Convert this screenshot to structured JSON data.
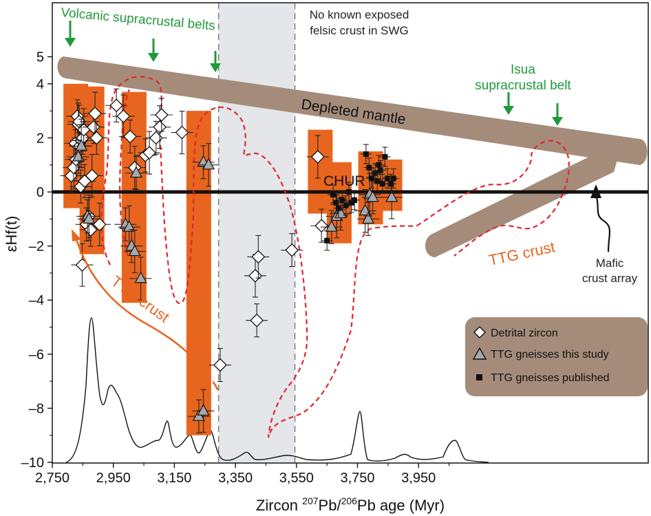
{
  "chart_data": {
    "type": "scatter",
    "xlabel_prefix": "Zircon ",
    "xlabel_sup1": "207",
    "xlabel_mid": "Pb/",
    "xlabel_sup2": "206",
    "xlabel_suffix": "Pb age (Myr)",
    "ylabel": "εHf(t)",
    "xlim": [
      2750,
      4050
    ],
    "ylim": [
      -10,
      5.5
    ],
    "x_ticks": [
      2750,
      2950,
      3150,
      3350,
      3550,
      3750,
      3950
    ],
    "x_tick_labels": [
      "2,750",
      "2,950",
      "3,150",
      "3,350",
      "3,550",
      "3,750",
      "3,950"
    ],
    "y_ticks": [
      -10,
      -8,
      -6,
      -4,
      -2,
      0,
      2,
      4,
      5
    ],
    "y_tick_labels": [
      "–10",
      "–8",
      "–6",
      "–4",
      "–2",
      "0",
      "2",
      "4",
      "5"
    ],
    "colors": {
      "mantle": "#a58c7a",
      "bars": "#e8651f",
      "grey_band": "#e4e6e9",
      "envelope": "#e0252e",
      "green": "#1e9a3a",
      "triangle_fill": "#a7a9ac",
      "legend_bg": "#a58c7a"
    },
    "grey_band": [
      3295,
      3545
    ],
    "chur_label": "CHUR",
    "depleted_mantle_label": "Depleted mantle",
    "orange_bars": [
      {
        "x": 2827,
        "y_top": 4.0,
        "y_bottom": -0.6
      },
      {
        "x": 2880,
        "y_top": 3.9,
        "y_bottom": -2.3
      },
      {
        "x": 3018,
        "y_top": 3.7,
        "y_bottom": -4.1
      },
      {
        "x": 3230,
        "y_top": 3.0,
        "y_bottom": -9.0
      },
      {
        "x": 3628,
        "y_top": 2.3,
        "y_bottom": -0.8
      },
      {
        "x": 3690,
        "y_top": 1.1,
        "y_bottom": -1.9
      },
      {
        "x": 3793,
        "y_top": 1.5,
        "y_bottom": -1.2
      },
      {
        "x": 3856,
        "y_top": 1.2,
        "y_bottom": -0.7
      }
    ],
    "series": [
      {
        "name": "Detrital zircon",
        "marker": "diamond",
        "points": [
          [
            2812,
            0.6
          ],
          [
            2820,
            0.9
          ],
          [
            2825,
            1.8
          ],
          [
            2828,
            1.2
          ],
          [
            2832,
            2.8
          ],
          [
            2835,
            2.5
          ],
          [
            2838,
            2.6
          ],
          [
            2840,
            1.7
          ],
          [
            2843,
            0.2
          ],
          [
            2845,
            1.9
          ],
          [
            2850,
            2.0
          ],
          [
            2853,
            2.3
          ],
          [
            2856,
            0.4
          ],
          [
            2848,
            -2.7
          ],
          [
            2862,
            -1.2
          ],
          [
            2870,
            -0.9
          ],
          [
            2876,
            -1.4
          ],
          [
            2880,
            0.6
          ],
          [
            2885,
            2.4
          ],
          [
            2890,
            2.9
          ],
          [
            2895,
            2.0
          ],
          [
            2905,
            -1.2
          ],
          [
            2960,
            3.2
          ],
          [
            2983,
            2.8
          ],
          [
            3005,
            2.05
          ],
          [
            3020,
            0.9
          ],
          [
            3055,
            1.35
          ],
          [
            3068,
            1.45
          ],
          [
            3090,
            2.0
          ],
          [
            3102,
            2.4
          ],
          [
            3108,
            2.85
          ],
          [
            3175,
            2.2
          ],
          [
            3300,
            -6.4
          ],
          [
            3415,
            -3.1
          ],
          [
            3420,
            -4.75
          ],
          [
            3425,
            -2.4
          ],
          [
            3535,
            -2.15
          ],
          [
            3620,
            1.3
          ],
          [
            3632,
            -1.25
          ]
        ]
      },
      {
        "name": "TTG gneisses this study",
        "marker": "triangle",
        "points": [
          [
            2835,
            1.3
          ],
          [
            2845,
            1.7
          ],
          [
            2865,
            -0.9
          ],
          [
            2870,
            -1.0
          ],
          [
            2990,
            -1.2
          ],
          [
            3002,
            -1.3
          ],
          [
            3010,
            -2.0
          ],
          [
            3020,
            -2.2
          ],
          [
            3025,
            0.7
          ],
          [
            3040,
            -3.2
          ],
          [
            3230,
            -8.3
          ],
          [
            3245,
            -8.1
          ],
          [
            3245,
            1.1
          ],
          [
            3262,
            1.0
          ],
          [
            3665,
            -1.3
          ],
          [
            3682,
            -0.9
          ],
          [
            3695,
            -0.8
          ],
          [
            3775,
            -0.7
          ],
          [
            3785,
            -1.0
          ],
          [
            3790,
            -0.1
          ],
          [
            3800,
            -0.2
          ],
          [
            3862,
            -0.2
          ]
        ]
      },
      {
        "name": "TTG gneisses published",
        "marker": "square",
        "points": [
          [
            3650,
            -1.8
          ],
          [
            3670,
            -0.1
          ],
          [
            3680,
            -0.4
          ],
          [
            3688,
            -0.6
          ],
          [
            3700,
            -0.3
          ],
          [
            3712,
            -0.5
          ],
          [
            3722,
            0.0
          ],
          [
            3730,
            -0.4
          ],
          [
            3740,
            -0.3
          ],
          [
            3778,
            1.4
          ],
          [
            3788,
            0.9
          ],
          [
            3796,
            0.5
          ],
          [
            3808,
            0.7
          ],
          [
            3815,
            0.4
          ],
          [
            3820,
            1.0
          ],
          [
            3825,
            0.8
          ],
          [
            3832,
            0.3
          ],
          [
            3840,
            1.3
          ],
          [
            3848,
            0.5
          ],
          [
            3860,
            0.3
          ],
          [
            3868,
            0.5
          ]
        ]
      }
    ],
    "annotations": {
      "volcanic_label": "Volcanic supracrustal belts",
      "no_crust_line1": "No known exposed",
      "no_crust_line2": "felsic crust in SWG",
      "isua_line1": "Isua",
      "isua_line2": "supracrustal belt",
      "ttg_crust_right": "TTG crust",
      "ttg_crust_left": "TTG crust",
      "mafic_line1": "Mafic",
      "mafic_line2": "crust array"
    },
    "legend": {
      "placement": "bottom-right",
      "entries": [
        "Detrital zircon",
        "TTG gneisses this study",
        "TTG gneisses published"
      ]
    }
  }
}
